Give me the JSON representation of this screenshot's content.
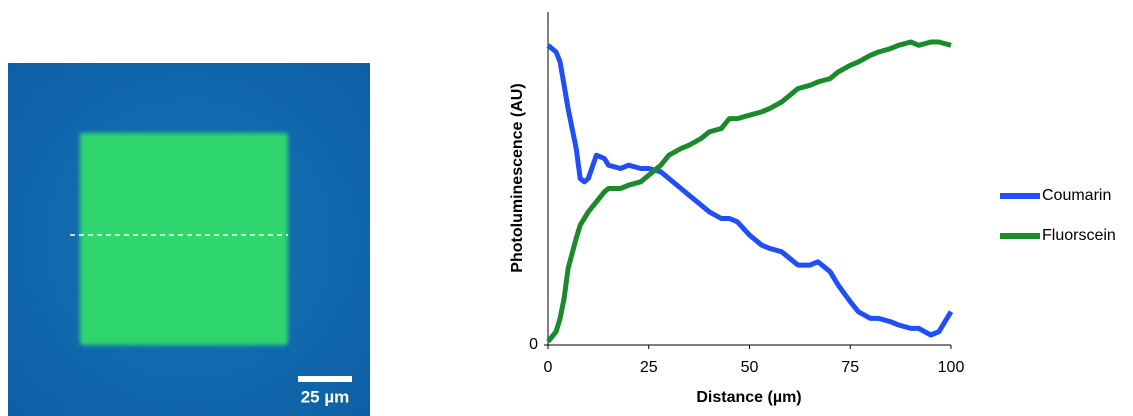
{
  "micrograph": {
    "scale_bar_label": "25 µm"
  },
  "chart_data": {
    "type": "line",
    "x_label": "Distance (µm)",
    "y_label": "Photoluminescence (AU)",
    "x": [
      0,
      2,
      3,
      4,
      5,
      7,
      8,
      9,
      10,
      12,
      14,
      15,
      18,
      20,
      23,
      25,
      28,
      30,
      33,
      35,
      38,
      40,
      43,
      45,
      47,
      50,
      53,
      55,
      58,
      60,
      62,
      65,
      67,
      70,
      72,
      75,
      77,
      80,
      82,
      85,
      87,
      90,
      92,
      95,
      97,
      100
    ],
    "series": [
      {
        "name": "Coumarin",
        "color": "#1f4ff5",
        "values": [
          90,
          88,
          85,
          78,
          71,
          59,
          50,
          49,
          50,
          57,
          56,
          54,
          53,
          54,
          53,
          53,
          52,
          50,
          47,
          45,
          42,
          40,
          38,
          38,
          37,
          33,
          30,
          29,
          28,
          26,
          24,
          24,
          25,
          22,
          18,
          13,
          10,
          8,
          8,
          7,
          6,
          5,
          5,
          3,
          4,
          10
        ]
      },
      {
        "name": "Fluorscein",
        "color": "#1a8a2a",
        "values": [
          1,
          4,
          8,
          14,
          23,
          32,
          36,
          38,
          40,
          43,
          46,
          47,
          47,
          48,
          49,
          51,
          54,
          57,
          59,
          60,
          62,
          64,
          65,
          68,
          68,
          69,
          70,
          71,
          73,
          75,
          77,
          78,
          79,
          80,
          82,
          84,
          85,
          87,
          88,
          89,
          90,
          91,
          90,
          91,
          91,
          90
        ]
      }
    ],
    "xlim": [
      0,
      100
    ],
    "xticks": [
      0,
      25,
      50,
      75,
      100
    ],
    "ylim": [
      0,
      100
    ],
    "yticks": [
      0
    ],
    "legend": "right"
  }
}
